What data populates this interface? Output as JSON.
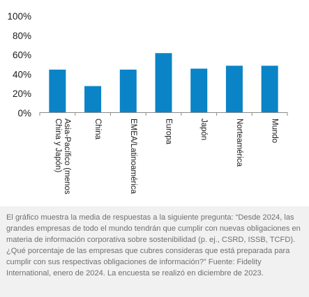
{
  "chart_data": {
    "type": "bar",
    "categories": [
      "Asia-Pacífico (menos China y Japón)",
      "China",
      "EMEA/Latinoamérica",
      "Europa",
      "Japón",
      "Norteamérica",
      "Mundo"
    ],
    "category_lines": [
      [
        "Asia-Pacífico (menos",
        "China y Japón)"
      ],
      [
        "China"
      ],
      [
        "EMEA/Latinoamérica"
      ],
      [
        "Europa"
      ],
      [
        "Japón"
      ],
      [
        "Norteamérica"
      ],
      [
        "Mundo"
      ]
    ],
    "values": [
      44,
      27,
      44,
      61,
      45,
      48,
      48
    ],
    "ylim": [
      0,
      100
    ],
    "yticks": [
      0,
      20,
      40,
      60,
      80,
      100
    ],
    "ytick_labels": [
      "0%",
      "20%",
      "40%",
      "60%",
      "80%",
      "100%"
    ],
    "bar_color": "#0a84c6",
    "grid": false
  },
  "caption": "El gráfico muestra la media de respuestas a la siguiente pregunta: “Desde 2024, las grandes empresas de todo el mundo tendrán que cumplir con nuevas obligaciones en materia de información corporativa sobre sostenibilidad (p. ej., CSRD, ISSB, TCFD). ¿Qué porcentaje de las empresas que cubres consideras que está preparada para cumplir con sus respectivas obligaciones de información?” Fuente: Fidelity International, enero de 2024. La encuesta se realizó en diciembre de 2023."
}
